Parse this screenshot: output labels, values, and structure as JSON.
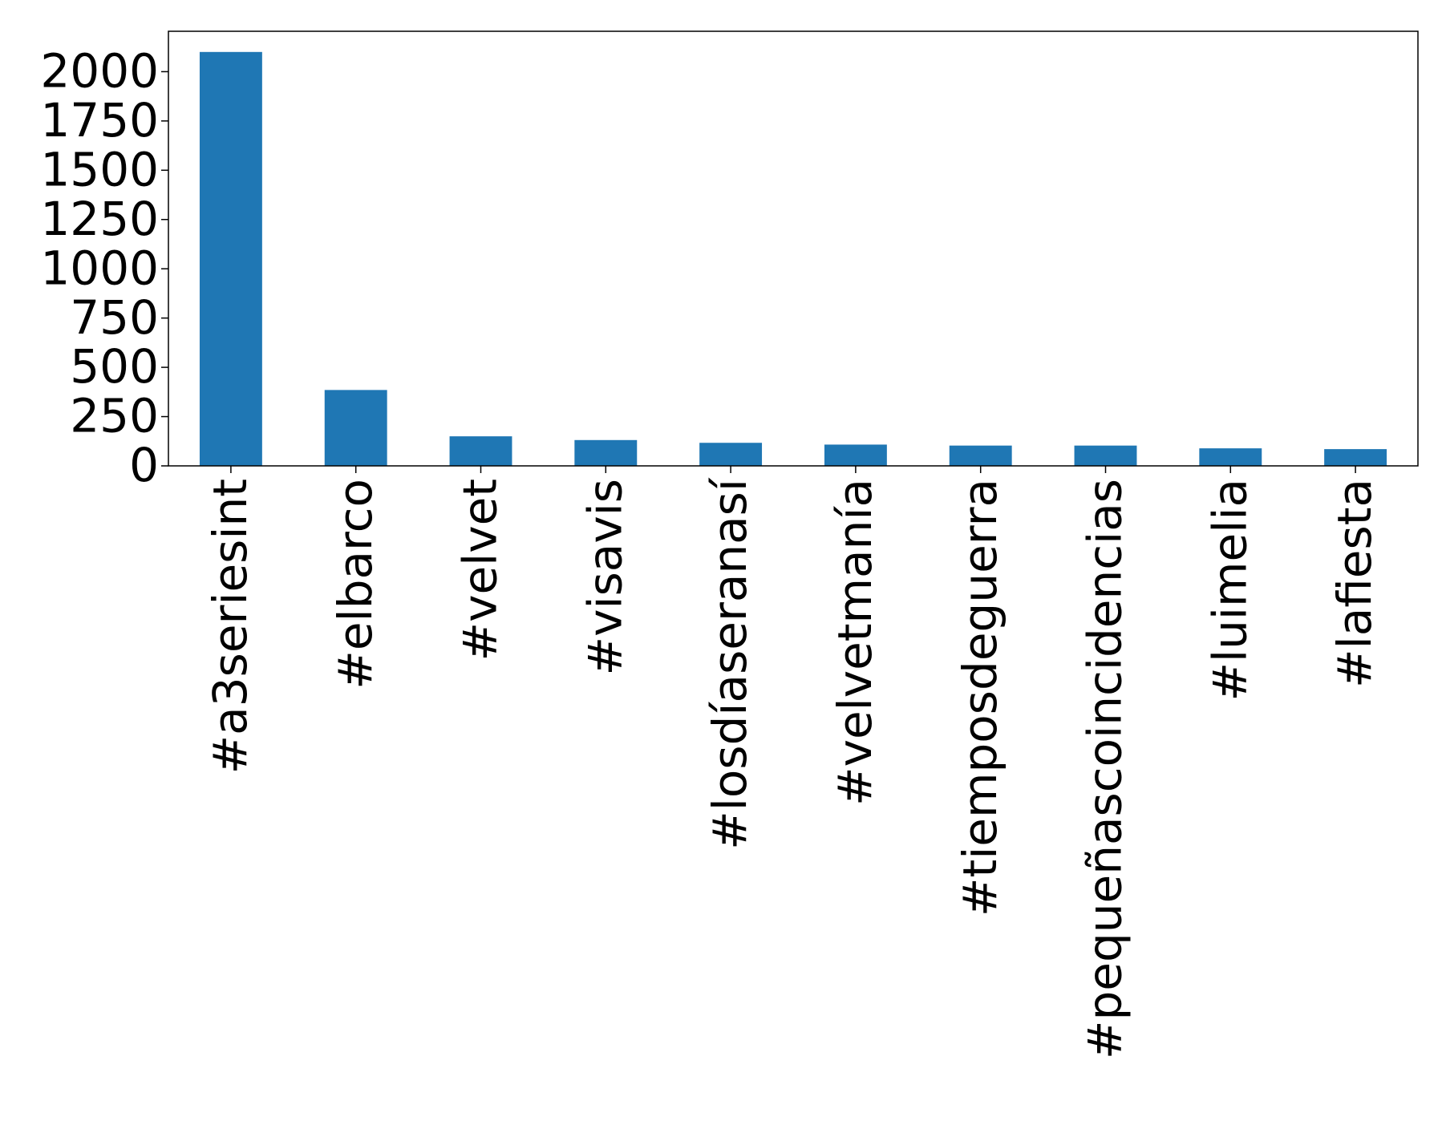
{
  "chart_data": {
    "type": "bar",
    "categories": [
      "#a3seriesint",
      "#elbarco",
      "#velvet",
      "#visavis",
      "#losdíaseranasí",
      "#velvetmanía",
      "#tiemposdeguerra",
      "#pequeñascoincidencias",
      "#luimelia",
      "#lafiesta"
    ],
    "values": [
      2100,
      385,
      150,
      131,
      117,
      108,
      103,
      103,
      89,
      85
    ],
    "color": "#1f77b4",
    "ylim": [
      0,
      2205
    ],
    "yticks": [
      0,
      250,
      500,
      750,
      1000,
      1250,
      1500,
      1750,
      2000
    ],
    "grid": false
  }
}
